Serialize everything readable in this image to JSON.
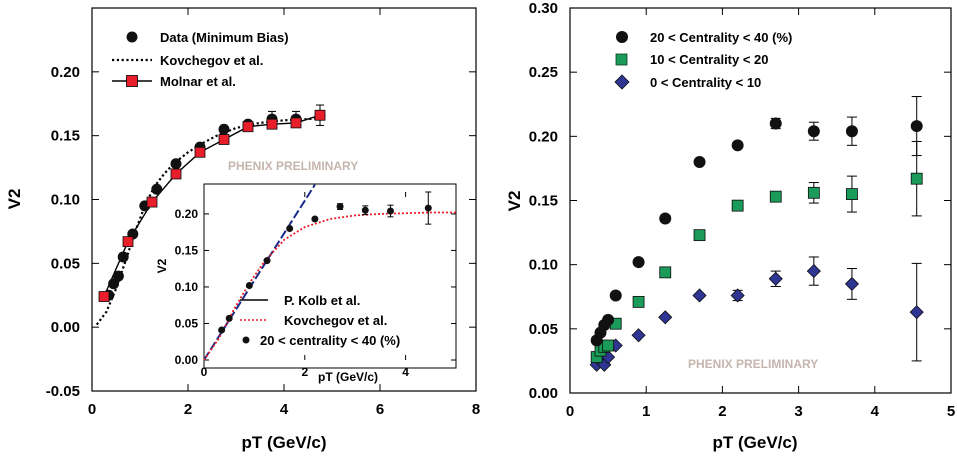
{
  "chart_data": [
    {
      "type": "scatter",
      "title": "",
      "xlabel": "pT (GeV/c)",
      "ylabel": "V2",
      "xlim": [
        0,
        8
      ],
      "ylim": [
        -0.05,
        0.25
      ],
      "xticks": [
        0,
        2,
        4,
        6,
        8
      ],
      "yticks": [
        -0.05,
        0.0,
        0.05,
        0.1,
        0.15,
        0.2
      ],
      "ytick_labels": [
        "-0.05",
        "0.00",
        "0.05",
        "0.10",
        "0.15",
        "0.20"
      ],
      "annotation": "PHENIX PRELIMINARY",
      "legend_position": "top-left",
      "series": [
        {
          "name": "Data (Minimum Bias)",
          "marker": "circle",
          "color": "#111111",
          "x": [
            0.35,
            0.45,
            0.55,
            0.65,
            0.85,
            1.1,
            1.35,
            1.75,
            2.25,
            2.75,
            3.25,
            3.75,
            4.25,
            4.75
          ],
          "y": [
            0.025,
            0.034,
            0.04,
            0.055,
            0.073,
            0.095,
            0.108,
            0.128,
            0.141,
            0.155,
            0.159,
            0.163,
            0.163,
            0.166
          ],
          "yerr": [
            0,
            0,
            0,
            0,
            0,
            0,
            0,
            0,
            0,
            0,
            0,
            0.006,
            0.006,
            0.008
          ]
        },
        {
          "name": "Kovchegov et al.",
          "style": "dotted",
          "color": "#000000",
          "x": [
            0.1,
            0.3,
            0.5,
            0.7,
            0.9,
            1.1,
            1.3,
            1.5,
            1.7,
            2.0,
            2.3,
            2.6,
            3.0,
            3.5,
            4.0,
            4.5,
            4.8
          ],
          "y": [
            0.002,
            0.012,
            0.03,
            0.052,
            0.075,
            0.095,
            0.11,
            0.12,
            0.128,
            0.137,
            0.144,
            0.15,
            0.156,
            0.16,
            0.162,
            0.163,
            0.164
          ]
        },
        {
          "name": "Molnar et al.",
          "marker": "square",
          "style": "solid",
          "color": "#e81f2a",
          "x": [
            0.25,
            0.75,
            1.25,
            1.75,
            2.25,
            2.75,
            3.25,
            3.75,
            4.25,
            4.75
          ],
          "y": [
            0.024,
            0.067,
            0.098,
            0.12,
            0.137,
            0.147,
            0.157,
            0.159,
            0.16,
            0.166
          ]
        }
      ]
    },
    {
      "type": "line",
      "title": "",
      "xlabel": "pT (GeV/c)",
      "ylabel": "V2",
      "xlim": [
        0,
        5
      ],
      "ylim": [
        0,
        0.23
      ],
      "xticks": [
        0,
        2,
        4
      ],
      "yticks": [
        0.0,
        0.05,
        0.1,
        0.15,
        0.2
      ],
      "ytick_labels": [
        "0.00",
        "0.05",
        "0.10",
        "0.15",
        "0.20"
      ],
      "legend_position": "bottom-right",
      "series": [
        {
          "name": "P. Kolb et al.",
          "style": "long-dash",
          "color": "#1a2b8c",
          "x": [
            0.0,
            2.2
          ],
          "y": [
            0.0,
            0.24
          ]
        },
        {
          "name": "Kovchegov et al.",
          "style": "dotted",
          "color": "#e81f2a",
          "x": [
            0.0,
            0.3,
            0.6,
            0.9,
            1.2,
            1.6,
            2.0,
            2.5,
            3.0,
            3.5,
            4.0,
            4.5,
            5.0
          ],
          "y": [
            0.0,
            0.03,
            0.07,
            0.105,
            0.135,
            0.165,
            0.182,
            0.193,
            0.198,
            0.2,
            0.201,
            0.202,
            0.202
          ]
        },
        {
          "name": "20 < centrality < 40 (%)",
          "marker": "circle",
          "color": "#111111",
          "x": [
            0.35,
            0.5,
            0.9,
            1.25,
            1.7,
            2.2,
            2.7,
            3.2,
            3.7,
            4.45
          ],
          "y": [
            0.041,
            0.057,
            0.102,
            0.136,
            0.18,
            0.193,
            0.21,
            0.205,
            0.204,
            0.208
          ],
          "yerr": [
            0,
            0,
            0,
            0,
            0,
            0,
            0.004,
            0.006,
            0.008,
            0.022
          ]
        }
      ]
    },
    {
      "type": "scatter",
      "title": "",
      "xlabel": "pT (GeV/c)",
      "ylabel": "V2",
      "xlim": [
        0,
        5
      ],
      "ylim": [
        0,
        0.3
      ],
      "xticks": [
        0,
        1,
        2,
        3,
        4,
        5
      ],
      "yticks": [
        0.0,
        0.05,
        0.1,
        0.15,
        0.2,
        0.25,
        0.3
      ],
      "ytick_labels": [
        "0.00",
        "0.05",
        "0.10",
        "0.15",
        "0.20",
        "0.25",
        "0.30"
      ],
      "annotation": "PHENIX PRELIMINARY",
      "legend_position": "top-left",
      "series": [
        {
          "name": "20 < Centrality < 40 (%)",
          "marker": "circle",
          "color": "#111111",
          "x": [
            0.35,
            0.4,
            0.45,
            0.5,
            0.6,
            0.9,
            1.25,
            1.7,
            2.2,
            2.7,
            3.2,
            3.7,
            4.55
          ],
          "y": [
            0.041,
            0.047,
            0.053,
            0.057,
            0.076,
            0.102,
            0.136,
            0.18,
            0.193,
            0.21,
            0.204,
            0.204,
            0.208
          ],
          "yerr": [
            0,
            0,
            0,
            0,
            0,
            0,
            0,
            0,
            0,
            0.004,
            0.007,
            0.011,
            0.023
          ]
        },
        {
          "name": "10 < Centrality < 20",
          "marker": "square",
          "color": "#1a9b5a",
          "x": [
            0.35,
            0.4,
            0.45,
            0.5,
            0.6,
            0.9,
            1.25,
            1.7,
            2.2,
            2.7,
            3.2,
            3.7,
            4.55
          ],
          "y": [
            0.028,
            0.033,
            0.036,
            0.037,
            0.054,
            0.071,
            0.094,
            0.123,
            0.146,
            0.153,
            0.156,
            0.155,
            0.167
          ],
          "yerr": [
            0,
            0,
            0,
            0,
            0,
            0,
            0,
            0,
            0,
            0.004,
            0.008,
            0.014,
            0.029
          ]
        },
        {
          "name": "0 < Centrality < 10",
          "marker": "diamond",
          "color": "#2e3592",
          "x": [
            0.35,
            0.4,
            0.45,
            0.5,
            0.6,
            0.9,
            1.25,
            1.7,
            2.2,
            2.7,
            3.2,
            3.7,
            4.55
          ],
          "y": [
            0.022,
            0.025,
            0.022,
            0.028,
            0.037,
            0.045,
            0.059,
            0.076,
            0.076,
            0.089,
            0.095,
            0.085,
            0.063
          ],
          "yerr": [
            0,
            0,
            0,
            0,
            0,
            0,
            0,
            0,
            0.004,
            0.006,
            0.011,
            0.012,
            0.038
          ]
        }
      ]
    }
  ]
}
